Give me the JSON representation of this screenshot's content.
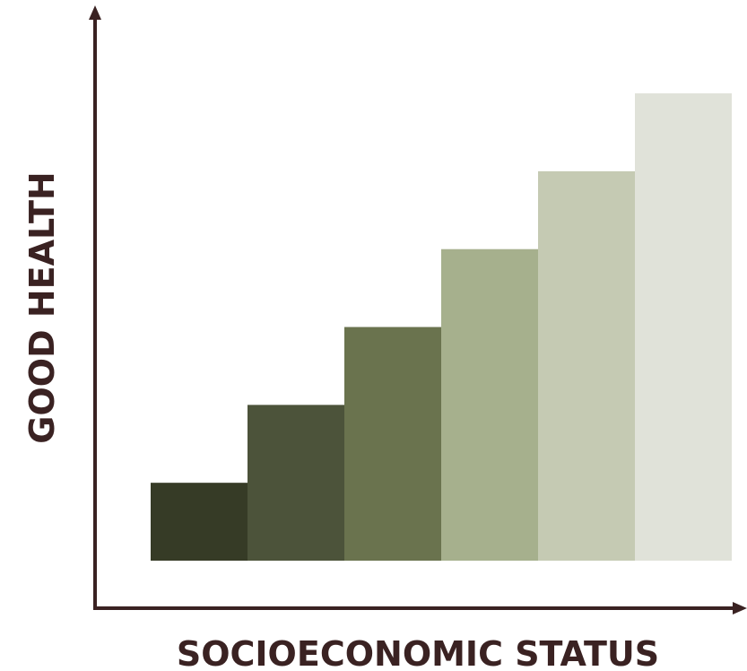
{
  "chart_data": {
    "type": "bar",
    "categories": [
      "",
      "",
      "",
      "",
      "",
      ""
    ],
    "values": [
      1,
      2,
      3,
      4,
      5,
      6
    ],
    "xlabel": "SOCIOECONOMIC STATUS",
    "ylabel": "GOOD HEALTH",
    "ylim": [
      0,
      6.6
    ],
    "grid": false,
    "legend": "none",
    "colors": [
      "#363b26",
      "#4c533a",
      "#6a734e",
      "#a6b08d",
      "#c5cab3",
      "#e0e2d9"
    ],
    "axis_color": "#3a2222"
  }
}
